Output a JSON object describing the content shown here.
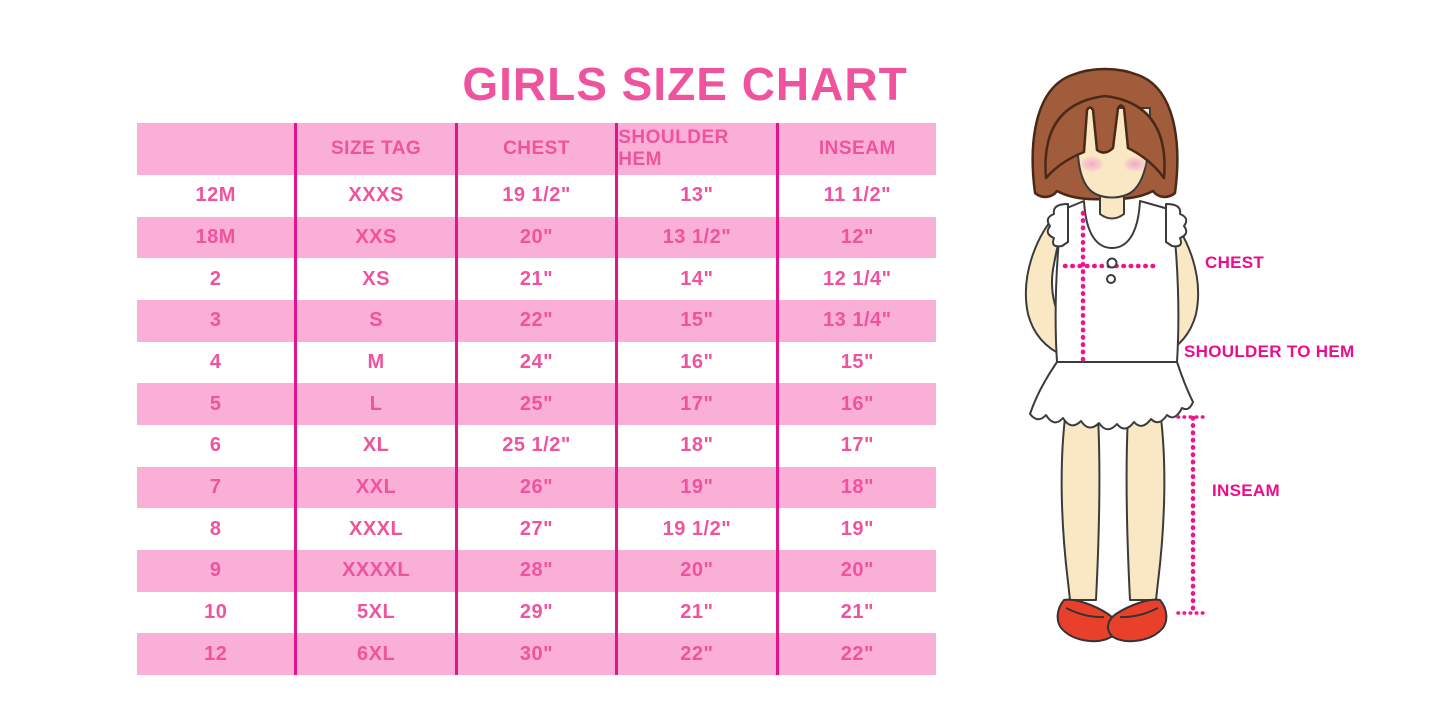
{
  "title": "GIRLS SIZE CHART",
  "chart_data": {
    "type": "table",
    "title": "GIRLS SIZE CHART",
    "columns": [
      "",
      "SIZE TAG",
      "CHEST",
      "SHOULDER HEM",
      "INSEAM"
    ],
    "rows": [
      [
        "12M",
        "XXXS",
        "19 1/2\"",
        "13\"",
        "11 1/2\""
      ],
      [
        "18M",
        "XXS",
        "20\"",
        "13 1/2\"",
        "12\""
      ],
      [
        "2",
        "XS",
        "21\"",
        "14\"",
        "12 1/4\""
      ],
      [
        "3",
        "S",
        "22\"",
        "15\"",
        "13 1/4\""
      ],
      [
        "4",
        "M",
        "24\"",
        "16\"",
        "15\""
      ],
      [
        "5",
        "L",
        "25\"",
        "17\"",
        "16\""
      ],
      [
        "6",
        "XL",
        "25 1/2\"",
        "18\"",
        "17\""
      ],
      [
        "7",
        "XXL",
        "26\"",
        "19\"",
        "18\""
      ],
      [
        "8",
        "XXXL",
        "27\"",
        "19 1/2\"",
        "19\""
      ],
      [
        "9",
        "XXXXL",
        "28\"",
        "20\"",
        "20\""
      ],
      [
        "10",
        "5XL",
        "29\"",
        "21\"",
        "21\""
      ],
      [
        "12",
        "6XL",
        "30\"",
        "22\"",
        "22\""
      ]
    ],
    "row_style": "alternating pink/white starting white",
    "legend_position": "none",
    "grid": "vertical magenta dividers only"
  },
  "figure": {
    "chest_label": "CHEST",
    "shoulder_label": "SHOULDER TO HEM",
    "inseam_label": "INSEAM"
  },
  "colors": {
    "accent_pink": "#F0539E",
    "row_pink": "#FAAFD7",
    "divider_magenta": "#E3138B",
    "label_magenta": "#EC0C8C",
    "dot_magenta": "#F0148C",
    "hair_brown": "#A15C3C",
    "skin": "#FAE7C3",
    "shoe_red": "#E9402C"
  }
}
